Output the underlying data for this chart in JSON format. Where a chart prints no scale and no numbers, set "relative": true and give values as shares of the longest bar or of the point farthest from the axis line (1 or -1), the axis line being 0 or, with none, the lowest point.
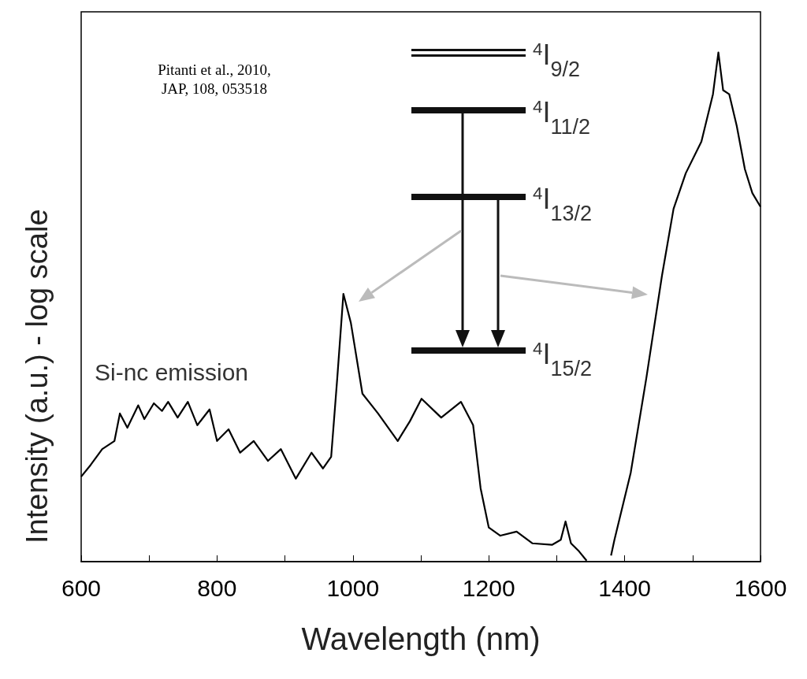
{
  "chart_data": {
    "type": "line",
    "xlabel": "Wavelength (nm)",
    "ylabel": "Intensity (a.u.) - log scale",
    "relative": true,
    "annotations": [
      "Pitanti et al., 2010,\nJAP, 108, 053518",
      "Si-nc emission",
      "$^{4}$I$_{9/2}$",
      "$^{4}$I$_{11/2}$",
      "$^{4}$I$_{13/2}$",
      "$^{4}$I$_{15/2}$"
    ],
    "xlim": [
      600,
      1600
    ],
    "xticks": [
      600,
      {
        "value": 700,
        "label": null
      },
      800,
      {
        "value": 900,
        "label": null
      },
      1000,
      {
        "value": 1100,
        "label": null
      },
      1200,
      {
        "value": 1300,
        "label": null
      },
      1400,
      {
        "value": 1500,
        "label": null
      },
      1600
    ],
    "x": [
      600,
      614,
      631,
      649,
      657,
      668,
      684,
      693,
      707,
      719,
      728,
      742,
      757,
      771,
      789,
      800,
      817,
      834,
      854,
      875,
      894,
      916,
      939,
      956,
      968,
      977,
      986,
      997,
      1014,
      1037,
      1066,
      1084,
      1101,
      1130,
      1159,
      1177,
      1188,
      1200,
      1217,
      1241,
      1264,
      1293,
      1306,
      1313,
      1321,
      1333,
      1344,
      1360,
      1380,
      1385,
      1409,
      1432,
      1455,
      1472,
      1490,
      1513,
      1530,
      1538,
      1545,
      1554,
      1565,
      1577,
      1588,
      1600
    ],
    "series": [
      {
        "color": "#000000",
        "values": [
          0.167,
          0.19,
          0.221,
          0.237,
          0.291,
          0.263,
          0.307,
          0.28,
          0.311,
          0.296,
          0.314,
          0.283,
          0.314,
          0.268,
          0.299,
          0.237,
          0.26,
          0.214,
          0.237,
          0.198,
          0.221,
          0.163,
          0.214,
          0.183,
          0.206,
          0.361,
          0.526,
          0.469,
          0.33,
          0.291,
          0.237,
          0.276,
          0.32,
          0.283,
          0.314,
          0.268,
          0.144,
          0.067,
          0.051,
          0.059,
          0.036,
          0.033,
          0.043,
          0.079,
          0.036,
          0.02,
          0.002,
          null,
          0.012,
          0.043,
          0.175,
          0.361,
          0.562,
          0.693,
          0.763,
          0.825,
          0.918,
          1.0,
          0.926,
          0.918,
          0.856,
          0.771,
          0.724,
          0.697
        ]
      }
    ]
  }
}
